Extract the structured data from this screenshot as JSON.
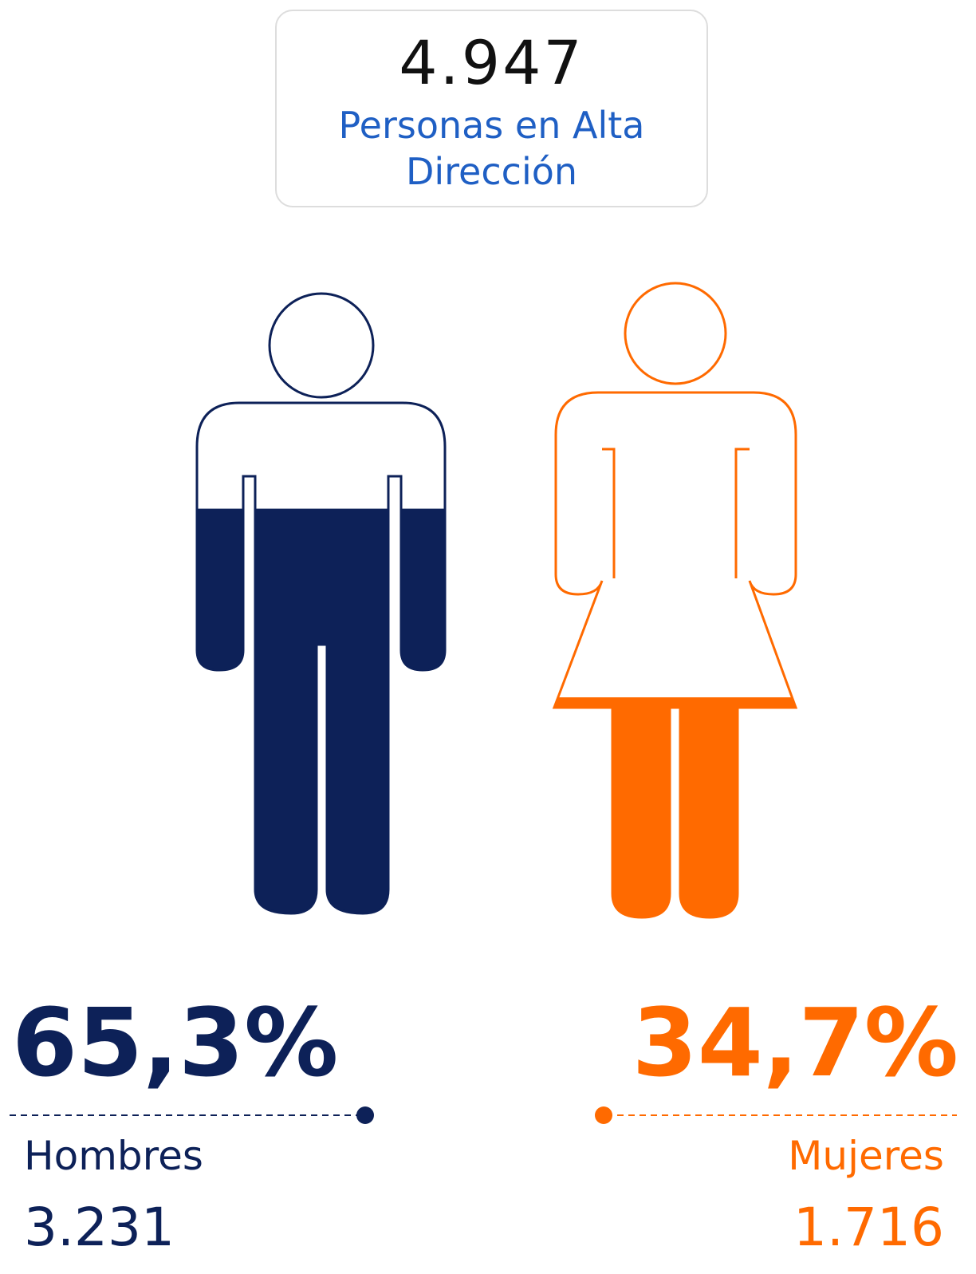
{
  "header": {
    "total": "4.947",
    "subtitle": "Personas en Alta Dirección"
  },
  "men": {
    "label": "Hombres",
    "share": {
      "value": 65.3,
      "label": "65,3%"
    },
    "count": "3.231",
    "color": "#0d2158"
  },
  "women": {
    "label": "Mujeres",
    "share": {
      "value": 34.7,
      "label": "34,7%"
    },
    "count": "1.716",
    "color": "#ff6a00"
  }
}
